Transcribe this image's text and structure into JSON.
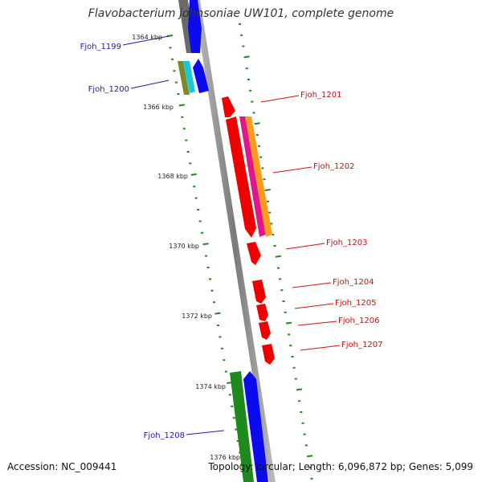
{
  "title": "Flavobacterium johnsoniae UW101, complete genome",
  "footer": {
    "accession": "Accession: NC_009441",
    "topology": "Topology: circular; Length: 6,096,872 bp; Genes: 5,099"
  },
  "colors": {
    "backbone": "#8a8a8a",
    "ruler": "#1f8a1f",
    "forward_label": "#1a1ab0",
    "reverse_label": "#d01010",
    "tick_label": "#222222"
  },
  "ticks": [
    {
      "kbp": 1364,
      "label": "1364 kbp"
    },
    {
      "kbp": 1366,
      "label": "1366 kbp"
    },
    {
      "kbp": 1368,
      "label": "1368 kbp"
    },
    {
      "kbp": 1370,
      "label": "1370 kbp"
    },
    {
      "kbp": 1372,
      "label": "1372 kbp"
    },
    {
      "kbp": 1374,
      "label": "1374 kbp"
    },
    {
      "kbp": 1376,
      "label": "1376 kbp"
    }
  ],
  "gene_labels": [
    {
      "name": "Fjoh_1199",
      "side": "left",
      "color": "#1a1ab0"
    },
    {
      "name": "Fjoh_1200",
      "side": "left",
      "color": "#1a1ab0"
    },
    {
      "name": "Fjoh_1201",
      "side": "right",
      "color": "#d01010"
    },
    {
      "name": "Fjoh_1202",
      "side": "right",
      "color": "#d01010"
    },
    {
      "name": "Fjoh_1203",
      "side": "right",
      "color": "#d01010"
    },
    {
      "name": "Fjoh_1204",
      "side": "right",
      "color": "#d01010"
    },
    {
      "name": "Fjoh_1205",
      "side": "right",
      "color": "#d01010"
    },
    {
      "name": "Fjoh_1206",
      "side": "right",
      "color": "#d01010"
    },
    {
      "name": "Fjoh_1207",
      "side": "right",
      "color": "#d01010"
    },
    {
      "name": "Fjoh_1208",
      "side": "left",
      "color": "#1a1ab0"
    }
  ]
}
